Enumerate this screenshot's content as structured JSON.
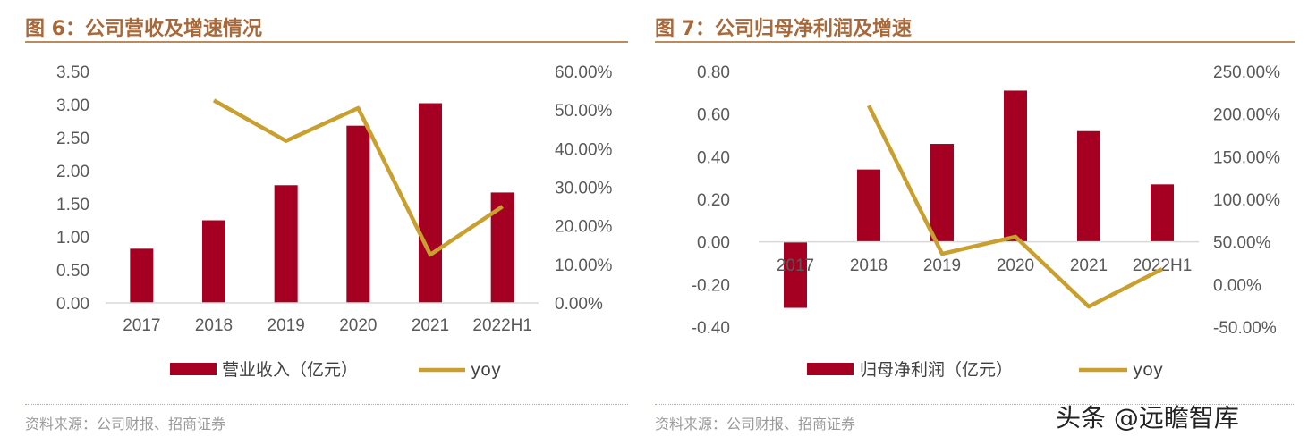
{
  "figures": [
    {
      "title": "图 6：公司营收及增速情况",
      "source": "资料来源：公司财报、招商证券",
      "legend": {
        "bar": "营业收入（亿元）",
        "line": "yoy"
      }
    },
    {
      "title": "图 7：公司归母净利润及增速",
      "source": "资料来源：公司财报、招商证券",
      "legend": {
        "bar": "归母净利润（亿元）",
        "line": "yoy"
      }
    }
  ],
  "watermark": "头条 @远瞻智库",
  "colors": {
    "bar": "#a50021",
    "line": "#c9a02f",
    "title": "#a8693a",
    "rule": "#b98b5e"
  },
  "chart_data": [
    {
      "type": "bar",
      "categories": [
        "2017",
        "2018",
        "2019",
        "2020",
        "2021",
        "2022H1"
      ],
      "series": [
        {
          "name": "营业收入（亿元）",
          "axis": "left",
          "type": "bar",
          "values": [
            0.82,
            1.25,
            1.78,
            2.68,
            3.02,
            1.67
          ]
        },
        {
          "name": "yoy",
          "axis": "right",
          "type": "line",
          "values": [
            null,
            52.5,
            42.0,
            50.5,
            12.5,
            25.0
          ]
        }
      ],
      "y_left": {
        "lim": [
          0,
          3.5
        ],
        "ticks": [
          "0.00",
          "0.50",
          "1.00",
          "1.50",
          "2.00",
          "2.50",
          "3.00",
          "3.50"
        ]
      },
      "y_right": {
        "lim": [
          0,
          60
        ],
        "ticks": [
          "0.00%",
          "10.00%",
          "20.00%",
          "30.00%",
          "40.00%",
          "50.00%",
          "60.00%"
        ]
      },
      "grid": false,
      "legend_position": "bottom"
    },
    {
      "type": "bar",
      "categories": [
        "2017",
        "2018",
        "2019",
        "2020",
        "2021",
        "2022H1"
      ],
      "series": [
        {
          "name": "归母净利润（亿元）",
          "axis": "left",
          "type": "bar",
          "values": [
            -0.31,
            0.34,
            0.46,
            0.71,
            0.52,
            0.27
          ]
        },
        {
          "name": "yoy",
          "axis": "right",
          "type": "line",
          "values": [
            null,
            210.0,
            36.0,
            56.0,
            -26.0,
            18.0
          ]
        }
      ],
      "y_left": {
        "lim": [
          -0.4,
          0.8
        ],
        "ticks": [
          "-0.40",
          "-0.20",
          "0.00",
          "0.20",
          "0.40",
          "0.60",
          "0.80"
        ]
      },
      "y_right": {
        "lim": [
          -50,
          250
        ],
        "ticks": [
          "-50.00%",
          "0.00%",
          "50.00%",
          "100.00%",
          "150.00%",
          "200.00%",
          "250.00%"
        ]
      },
      "grid": false,
      "legend_position": "bottom"
    }
  ]
}
